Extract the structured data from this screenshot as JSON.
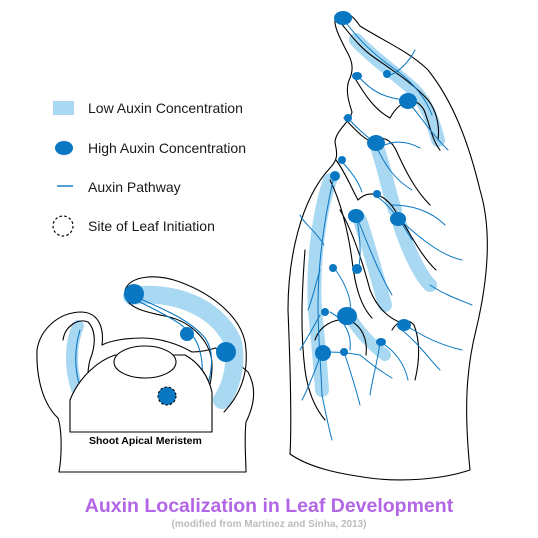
{
  "colors": {
    "low_auxin": "#a9d8f2",
    "high_auxin": "#0a77c2",
    "pathway": "#0a77c2",
    "title": "#b266e6",
    "subtitle": "#bcbcbc"
  },
  "legend": {
    "low": {
      "label": "Low Auxin Concentration",
      "icon": "low-auxin-swatch"
    },
    "high": {
      "label": "High Auxin Concentration",
      "icon": "high-auxin-dot"
    },
    "pathway": {
      "label": "Auxin Pathway",
      "icon": "pathway-line"
    },
    "site": {
      "label": "Site of Leaf Initiation",
      "icon": "dashed-circle"
    }
  },
  "meristem_label": "Shoot Apical Meristem",
  "title": "Auxin Localization in Leaf Development",
  "subtitle": "(modified from Martinez and Sinha, 2013)"
}
